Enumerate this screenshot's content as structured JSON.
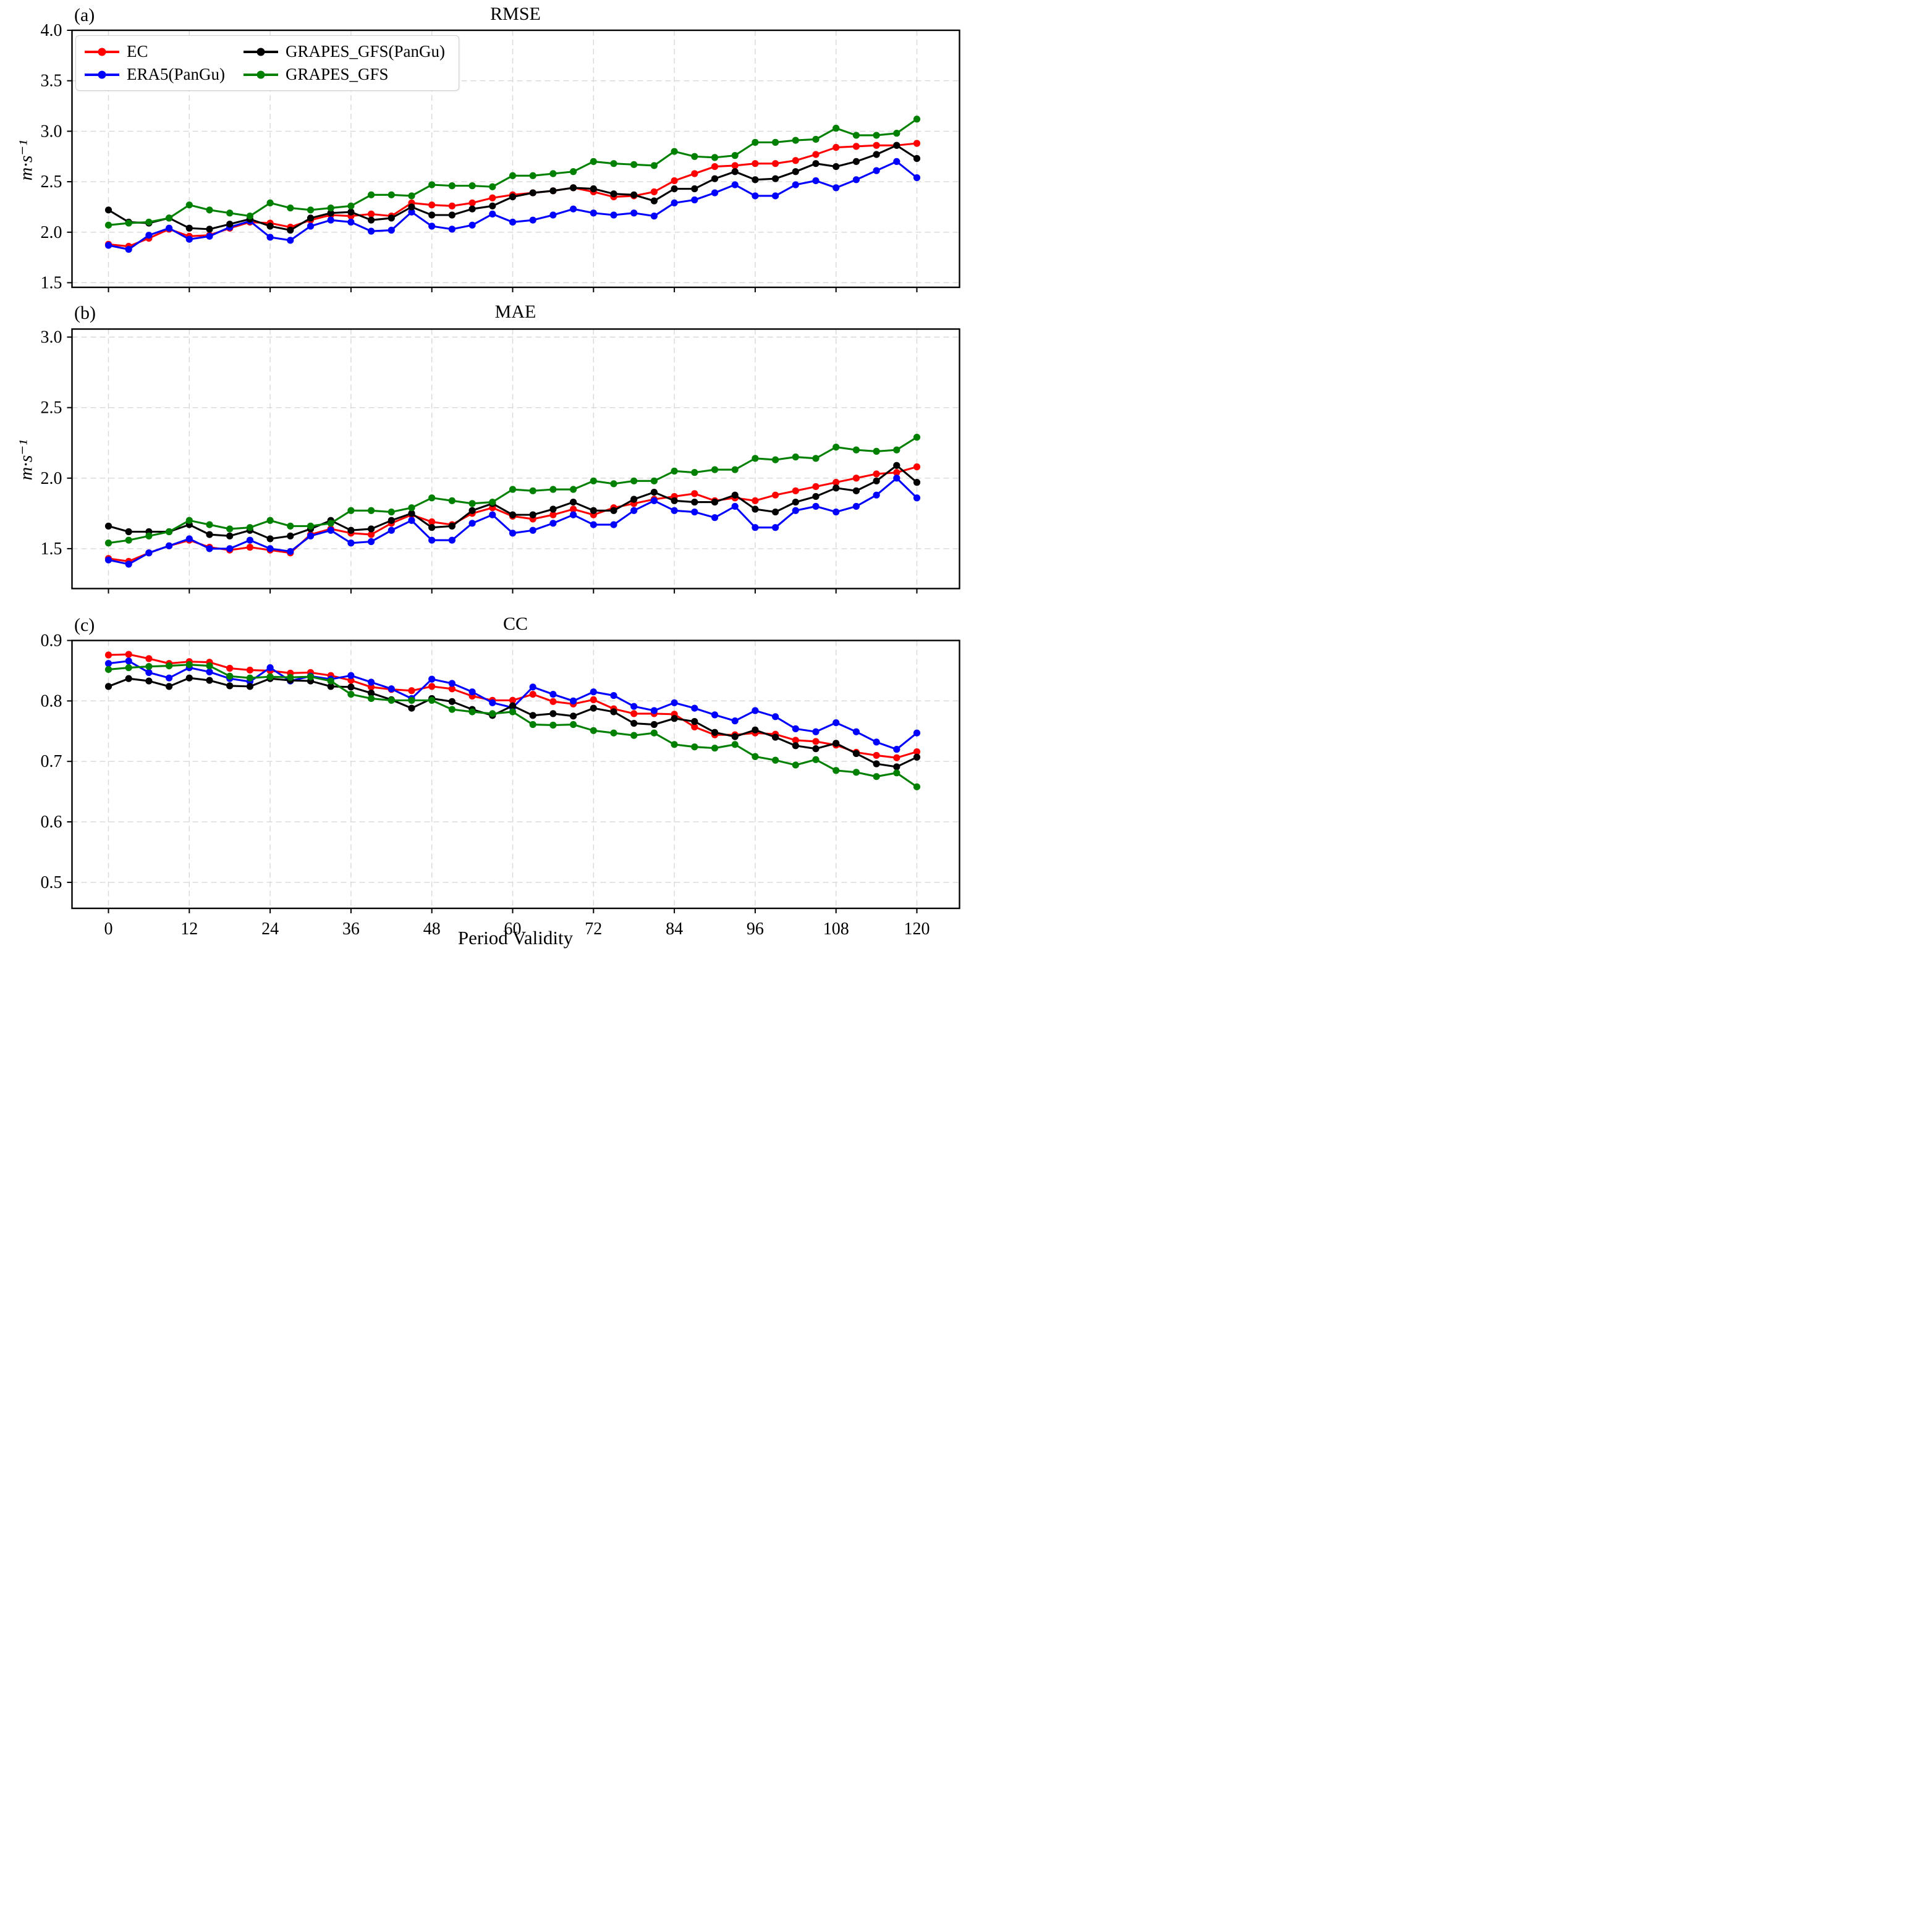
{
  "figure": {
    "xlabel": "Period Validity",
    "x_ticks": [
      0,
      12,
      24,
      36,
      48,
      60,
      72,
      84,
      96,
      108,
      120
    ],
    "background": "#ffffff",
    "grid_color": "#d8d8d8",
    "axis_color": "#000000"
  },
  "legend": {
    "items": [
      {
        "label": "EC",
        "color": "#ff0000"
      },
      {
        "label": "GRAPES_GFS(PanGu)",
        "color": "#000000"
      },
      {
        "label": "ERA5(PanGu)",
        "color": "#0000ff"
      },
      {
        "label": "GRAPES_GFS",
        "color": "#008000"
      }
    ]
  },
  "chart_data": [
    {
      "type": "line",
      "panel": "(a)",
      "title": "RMSE",
      "ylabel": "m·s⁻¹",
      "xlabel": "",
      "ylim": [
        1.454,
        4.0
      ],
      "yticks": [
        1.5,
        2.0,
        2.5,
        3.0,
        3.5,
        4.0
      ],
      "xlim": [
        -5.4,
        126.3
      ],
      "grid": true,
      "legend_position": "upper-left",
      "x": [
        0,
        3,
        6,
        9,
        12,
        15,
        18,
        21,
        24,
        27,
        30,
        33,
        36,
        39,
        42,
        45,
        48,
        51,
        54,
        57,
        60,
        63,
        66,
        69,
        72,
        75,
        78,
        81,
        84,
        87,
        90,
        93,
        96,
        99,
        102,
        105,
        108,
        111,
        114,
        117,
        120
      ],
      "series": [
        {
          "name": "EC",
          "color": "#ff0000",
          "values": [
            1.88,
            1.86,
            1.94,
            2.03,
            1.96,
            1.97,
            2.04,
            2.1,
            2.09,
            2.05,
            2.12,
            2.17,
            2.16,
            2.18,
            2.16,
            2.29,
            2.27,
            2.26,
            2.29,
            2.34,
            2.37,
            2.39,
            2.41,
            2.44,
            2.4,
            2.35,
            2.36,
            2.4,
            2.51,
            2.58,
            2.65,
            2.66,
            2.68,
            2.68,
            2.71,
            2.77,
            2.84,
            2.85,
            2.86,
            2.86,
            2.88
          ]
        },
        {
          "name": "ERA5(PanGu)",
          "color": "#0000ff",
          "values": [
            1.87,
            1.83,
            1.97,
            2.04,
            1.93,
            1.96,
            2.05,
            2.11,
            1.95,
            1.92,
            2.06,
            2.12,
            2.1,
            2.01,
            2.02,
            2.2,
            2.06,
            2.03,
            2.07,
            2.18,
            2.1,
            2.12,
            2.17,
            2.23,
            2.19,
            2.17,
            2.19,
            2.16,
            2.29,
            2.32,
            2.39,
            2.47,
            2.36,
            2.36,
            2.47,
            2.51,
            2.44,
            2.52,
            2.61,
            2.7,
            2.54
          ]
        },
        {
          "name": "GRAPES_GFS(PanGu)",
          "color": "#000000",
          "values": [
            2.22,
            2.1,
            2.09,
            2.14,
            2.04,
            2.03,
            2.08,
            2.13,
            2.06,
            2.02,
            2.14,
            2.19,
            2.2,
            2.12,
            2.14,
            2.25,
            2.17,
            2.17,
            2.23,
            2.26,
            2.35,
            2.39,
            2.41,
            2.44,
            2.43,
            2.38,
            2.37,
            2.31,
            2.43,
            2.43,
            2.53,
            2.6,
            2.52,
            2.53,
            2.6,
            2.68,
            2.65,
            2.7,
            2.77,
            2.86,
            2.73
          ]
        },
        {
          "name": "GRAPES_GFS",
          "color": "#008000",
          "values": [
            2.07,
            2.09,
            2.1,
            2.14,
            2.27,
            2.22,
            2.19,
            2.16,
            2.29,
            2.24,
            2.22,
            2.24,
            2.26,
            2.37,
            2.37,
            2.36,
            2.47,
            2.46,
            2.46,
            2.45,
            2.56,
            2.56,
            2.58,
            2.6,
            2.7,
            2.68,
            2.67,
            2.66,
            2.8,
            2.75,
            2.74,
            2.76,
            2.89,
            2.89,
            2.91,
            2.92,
            3.03,
            2.96,
            2.96,
            2.98,
            3.12
          ]
        }
      ]
    },
    {
      "type": "line",
      "panel": "(b)",
      "title": "MAE",
      "ylabel": "m·s⁻¹",
      "xlabel": "",
      "ylim": [
        1.217,
        3.057
      ],
      "yticks": [
        1.5,
        2.0,
        2.5,
        3.0
      ],
      "xlim": [
        -5.4,
        126.3
      ],
      "grid": true,
      "x": [
        0,
        3,
        6,
        9,
        12,
        15,
        18,
        21,
        24,
        27,
        30,
        33,
        36,
        39,
        42,
        45,
        48,
        51,
        54,
        57,
        60,
        63,
        66,
        69,
        72,
        75,
        78,
        81,
        84,
        87,
        90,
        93,
        96,
        99,
        102,
        105,
        108,
        111,
        114,
        117,
        120
      ],
      "series": [
        {
          "name": "EC",
          "color": "#ff0000",
          "values": [
            1.43,
            1.41,
            1.47,
            1.52,
            1.56,
            1.51,
            1.49,
            1.51,
            1.49,
            1.47,
            1.6,
            1.64,
            1.61,
            1.6,
            1.68,
            1.74,
            1.69,
            1.67,
            1.75,
            1.79,
            1.73,
            1.71,
            1.74,
            1.78,
            1.74,
            1.79,
            1.82,
            1.85,
            1.87,
            1.89,
            1.84,
            1.86,
            1.84,
            1.88,
            1.91,
            1.94,
            1.97,
            2.0,
            2.03,
            2.04,
            2.08
          ]
        },
        {
          "name": "ERA5(PanGu)",
          "color": "#0000ff",
          "values": [
            1.42,
            1.39,
            1.47,
            1.52,
            1.57,
            1.5,
            1.5,
            1.56,
            1.5,
            1.48,
            1.59,
            1.63,
            1.54,
            1.55,
            1.63,
            1.7,
            1.56,
            1.56,
            1.68,
            1.74,
            1.61,
            1.63,
            1.68,
            1.74,
            1.67,
            1.67,
            1.77,
            1.84,
            1.77,
            1.76,
            1.72,
            1.8,
            1.65,
            1.65,
            1.77,
            1.8,
            1.76,
            1.8,
            1.88,
            2.0,
            1.86
          ]
        },
        {
          "name": "GRAPES_GFS(PanGu)",
          "color": "#000000",
          "values": [
            1.66,
            1.62,
            1.62,
            1.62,
            1.67,
            1.6,
            1.59,
            1.63,
            1.57,
            1.59,
            1.64,
            1.7,
            1.63,
            1.64,
            1.7,
            1.75,
            1.65,
            1.66,
            1.77,
            1.82,
            1.74,
            1.74,
            1.78,
            1.83,
            1.77,
            1.77,
            1.85,
            1.9,
            1.84,
            1.83,
            1.83,
            1.88,
            1.78,
            1.76,
            1.83,
            1.87,
            1.93,
            1.91,
            1.98,
            2.09,
            1.97
          ]
        },
        {
          "name": "GRAPES_GFS",
          "color": "#008000",
          "values": [
            1.54,
            1.56,
            1.59,
            1.62,
            1.7,
            1.67,
            1.64,
            1.65,
            1.7,
            1.66,
            1.66,
            1.68,
            1.77,
            1.77,
            1.76,
            1.79,
            1.86,
            1.84,
            1.82,
            1.83,
            1.92,
            1.91,
            1.92,
            1.92,
            1.98,
            1.96,
            1.98,
            1.98,
            2.05,
            2.04,
            2.06,
            2.06,
            2.14,
            2.13,
            2.15,
            2.14,
            2.22,
            2.2,
            2.19,
            2.2,
            2.29
          ]
        }
      ]
    },
    {
      "type": "line",
      "panel": "(c)",
      "title": "CC",
      "ylabel": "",
      "xlabel": "Period Validity",
      "ylim": [
        0.457,
        0.9
      ],
      "yticks": [
        0.5,
        0.6,
        0.7,
        0.8,
        0.9
      ],
      "xlim": [
        -5.4,
        126.3
      ],
      "grid": true,
      "x": [
        0,
        3,
        6,
        9,
        12,
        15,
        18,
        21,
        24,
        27,
        30,
        33,
        36,
        39,
        42,
        45,
        48,
        51,
        54,
        57,
        60,
        63,
        66,
        69,
        72,
        75,
        78,
        81,
        84,
        87,
        90,
        93,
        96,
        99,
        102,
        105,
        108,
        111,
        114,
        117,
        120
      ],
      "series": [
        {
          "name": "EC",
          "color": "#ff0000",
          "values": [
            0.876,
            0.877,
            0.87,
            0.862,
            0.865,
            0.864,
            0.854,
            0.851,
            0.85,
            0.846,
            0.847,
            0.842,
            0.834,
            0.823,
            0.819,
            0.817,
            0.824,
            0.82,
            0.808,
            0.801,
            0.801,
            0.811,
            0.799,
            0.795,
            0.802,
            0.787,
            0.779,
            0.779,
            0.778,
            0.757,
            0.744,
            0.744,
            0.747,
            0.745,
            0.735,
            0.733,
            0.727,
            0.715,
            0.71,
            0.706,
            0.716
          ]
        },
        {
          "name": "ERA5(PanGu)",
          "color": "#0000ff",
          "values": [
            0.862,
            0.866,
            0.847,
            0.838,
            0.855,
            0.848,
            0.837,
            0.832,
            0.855,
            0.833,
            0.841,
            0.836,
            0.842,
            0.831,
            0.82,
            0.804,
            0.836,
            0.829,
            0.815,
            0.797,
            0.789,
            0.823,
            0.811,
            0.8,
            0.815,
            0.809,
            0.791,
            0.784,
            0.797,
            0.788,
            0.777,
            0.767,
            0.784,
            0.774,
            0.754,
            0.749,
            0.764,
            0.749,
            0.732,
            0.72,
            0.747
          ]
        },
        {
          "name": "GRAPES_GFS(PanGu)",
          "color": "#000000",
          "values": [
            0.824,
            0.837,
            0.833,
            0.824,
            0.838,
            0.834,
            0.825,
            0.824,
            0.837,
            0.834,
            0.833,
            0.824,
            0.823,
            0.813,
            0.802,
            0.788,
            0.804,
            0.799,
            0.786,
            0.776,
            0.792,
            0.776,
            0.779,
            0.775,
            0.788,
            0.782,
            0.763,
            0.761,
            0.771,
            0.766,
            0.748,
            0.741,
            0.752,
            0.74,
            0.726,
            0.721,
            0.73,
            0.713,
            0.696,
            0.691,
            0.707
          ]
        },
        {
          "name": "GRAPES_GFS",
          "color": "#008000",
          "values": [
            0.852,
            0.855,
            0.857,
            0.858,
            0.86,
            0.858,
            0.841,
            0.838,
            0.84,
            0.839,
            0.84,
            0.833,
            0.811,
            0.804,
            0.801,
            0.801,
            0.801,
            0.786,
            0.782,
            0.779,
            0.782,
            0.761,
            0.76,
            0.761,
            0.751,
            0.747,
            0.743,
            0.747,
            0.728,
            0.724,
            0.722,
            0.728,
            0.708,
            0.702,
            0.694,
            0.703,
            0.685,
            0.682,
            0.675,
            0.681,
            0.658
          ]
        }
      ]
    }
  ]
}
